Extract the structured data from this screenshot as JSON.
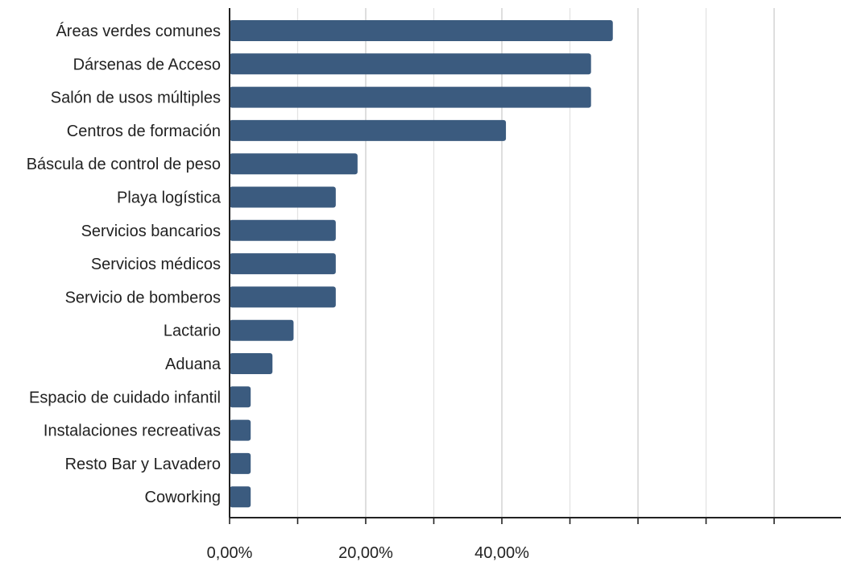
{
  "chart_data": {
    "type": "bar",
    "orientation": "horizontal",
    "categories": [
      "Áreas verdes comunes",
      "Dársenas de Acceso",
      "Salón de usos múltiples",
      "Centros de formación",
      "Báscula de control de peso",
      "Playa logística",
      "Servicios bancarios",
      "Servicios médicos",
      "Servicio de bomberos",
      "Lactario",
      "Aduana",
      "Espacio de cuidado infantil",
      "Instalaciones recreativas",
      "Resto Bar y Lavadero",
      "Coworking"
    ],
    "values": [
      56.3,
      53.1,
      53.1,
      40.6,
      18.8,
      15.6,
      15.6,
      15.6,
      15.6,
      9.4,
      6.3,
      3.1,
      3.1,
      3.1,
      3.1
    ],
    "x_ticks": [
      "0,00%",
      "20,00%",
      "40,00%"
    ],
    "x_tick_values": [
      0,
      20,
      40
    ],
    "xlim": [
      0,
      56.3
    ],
    "grid": true,
    "bar_color": "#3b5b7f",
    "title": "",
    "xlabel": "",
    "ylabel": ""
  }
}
